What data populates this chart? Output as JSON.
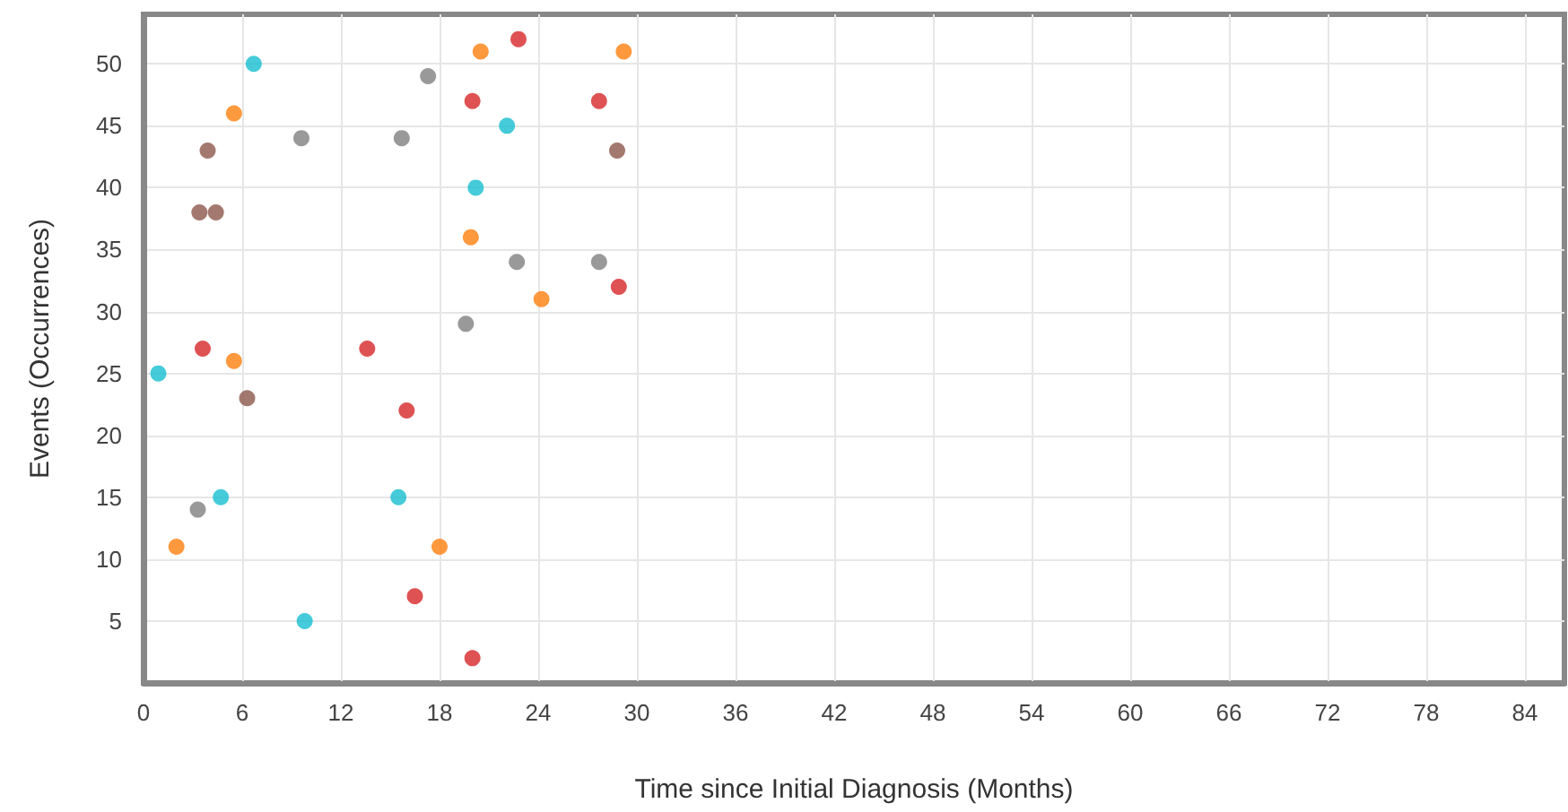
{
  "chart_data": {
    "type": "scatter",
    "xlabel": "Time since Initial Diagnosis (Months)",
    "ylabel": "Events (Occurrences)",
    "xlim": [
      0,
      86.4
    ],
    "xticks": [
      0,
      6,
      12,
      18,
      24,
      30,
      36,
      42,
      48,
      54,
      60,
      66,
      72,
      78,
      84
    ],
    "ylim": [
      0,
      54
    ],
    "yticks": [
      5,
      10,
      15,
      20,
      25,
      30,
      35,
      40,
      45,
      50
    ],
    "grid": true,
    "marker": "circle",
    "series": [
      {
        "color": "#d62728",
        "x": [
          22.8,
          20.0,
          27.7,
          28.9,
          3.6,
          13.6,
          16.0,
          16.5,
          20.0
        ],
        "values": [
          52,
          47,
          47,
          32,
          27,
          27,
          22,
          7,
          2
        ]
      },
      {
        "color": "#ff7f0e",
        "x": [
          20.5,
          29.2,
          5.5,
          19.9,
          24.2,
          5.5,
          2.0,
          18.0
        ],
        "values": [
          51,
          51,
          46,
          36,
          31,
          26,
          11,
          11
        ]
      },
      {
        "color": "#17becf",
        "x": [
          6.7,
          22.1,
          20.2,
          0.9,
          4.7,
          15.5,
          9.8
        ],
        "values": [
          50,
          45,
          40,
          25,
          15,
          15,
          5
        ]
      },
      {
        "color": "#7f7f7f",
        "x": [
          17.3,
          9.6,
          15.7,
          22.7,
          27.7,
          19.6,
          3.3
        ],
        "values": [
          49,
          44,
          44,
          34,
          34,
          29,
          14
        ]
      },
      {
        "color": "#8c564b",
        "x": [
          3.9,
          28.8,
          3.4,
          4.4,
          6.3
        ],
        "values": [
          43,
          43,
          38,
          38,
          23
        ]
      }
    ]
  }
}
